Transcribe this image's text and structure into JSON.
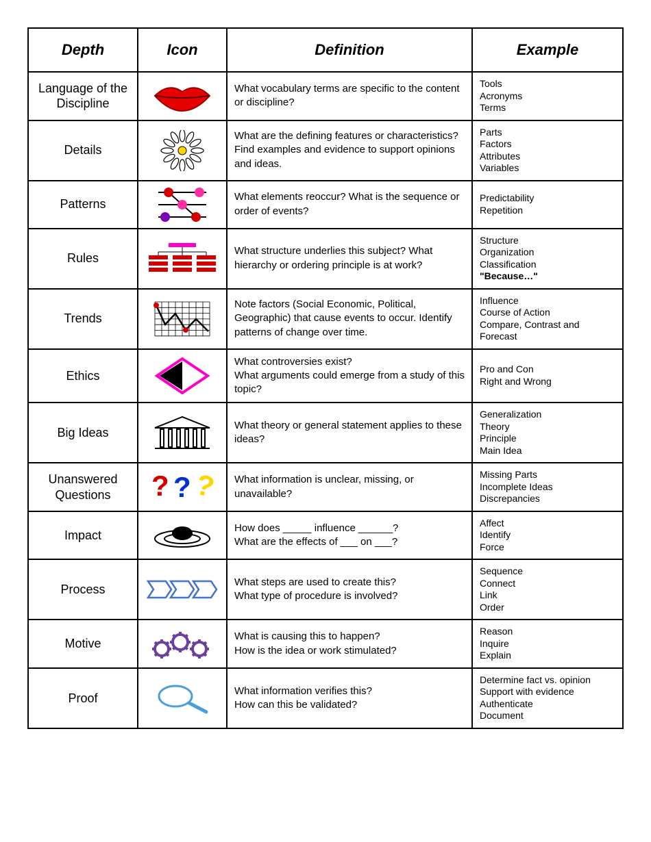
{
  "headers": {
    "depth": "Depth",
    "icon": "Icon",
    "definition": "Definition",
    "example": "Example"
  },
  "colors": {
    "border": "#000000",
    "lips": "#e60000",
    "lips_stroke": "#990000",
    "flower_petal": "#ffffff",
    "flower_center": "#ffd500",
    "pattern_node_red": "#d40000",
    "pattern_node_pink": "#ff2fa3",
    "pattern_node_purple": "#7a00b3",
    "rules_red": "#d40000",
    "rules_magenta": "#ff00c8",
    "trends_line": "#000000",
    "trends_marker": "#d40000",
    "ethics_border": "#ff00c8",
    "big_ideas": "#000000",
    "q_red": "#d40000",
    "q_blue": "#0033cc",
    "q_yellow": "#ffd500",
    "impact": "#000000",
    "process": "#4472c4",
    "motive": "#6b3fa0",
    "proof": "#4a9edb"
  },
  "rows": [
    {
      "depth": "Language of the Discipline",
      "icon": "lips-icon",
      "definition": "What vocabulary terms are specific to the content or discipline?",
      "example": "Tools\nAcronyms\nTerms"
    },
    {
      "depth": "Details",
      "icon": "flower-icon",
      "definition": "What are the defining features or characteristics? Find examples and evidence to support opinions and ideas.",
      "example": "Parts\nFactors\nAttributes\nVariables"
    },
    {
      "depth": "Patterns",
      "icon": "pattern-icon",
      "definition": "What elements reoccur? What is the sequence or order of events?",
      "example": "Predictability\nRepetition"
    },
    {
      "depth": "Rules",
      "icon": "rules-icon",
      "definition": "What structure underlies this subject? What hierarchy or ordering principle is at work?",
      "example": "Structure\nOrganization\nClassification\n<b>\"Because…\"</b>"
    },
    {
      "depth": "Trends",
      "icon": "trends-icon",
      "definition": "Note factors (Social Economic, Political, Geographic) that cause events to occur. Identify patterns of change over time.",
      "example": "Influence\nCourse of Action\nCompare, Contrast and Forecast"
    },
    {
      "depth": "Ethics",
      "icon": "ethics-icon",
      "definition": "What controversies exist?\nWhat arguments could emerge from a study of this topic?",
      "example": "Pro and Con\nRight and Wrong"
    },
    {
      "depth": "Big Ideas",
      "icon": "building-icon",
      "definition": "What theory or general statement applies to these ideas?",
      "example": "Generalization\nTheory\nPrinciple\nMain Idea"
    },
    {
      "depth": "Unanswered Questions",
      "icon": "questions-icon",
      "definition": "What information is unclear, missing, or unavailable?",
      "example": "Missing Parts\nIncomplete Ideas\nDiscrepancies"
    },
    {
      "depth": "Impact",
      "icon": "impact-icon",
      "definition": "How does _____ influence ______?\nWhat are the effects of ___ on ___?",
      "example": "Affect\nIdentify\nForce"
    },
    {
      "depth": "Process",
      "icon": "process-icon",
      "definition": "What steps are used to create this?\nWhat type of procedure is involved?",
      "example": "Sequence\nConnect\nLink\nOrder"
    },
    {
      "depth": "Motive",
      "icon": "gears-icon",
      "definition": "What is causing this to happen?\nHow is the idea or work stimulated?",
      "example": "Reason\nInquire\nExplain"
    },
    {
      "depth": "Proof",
      "icon": "magnifier-icon",
      "definition": "What information verifies this?\nHow can this be validated?",
      "example": "Determine fact vs. opinion\nSupport with evidence\nAuthenticate\nDocument"
    }
  ]
}
